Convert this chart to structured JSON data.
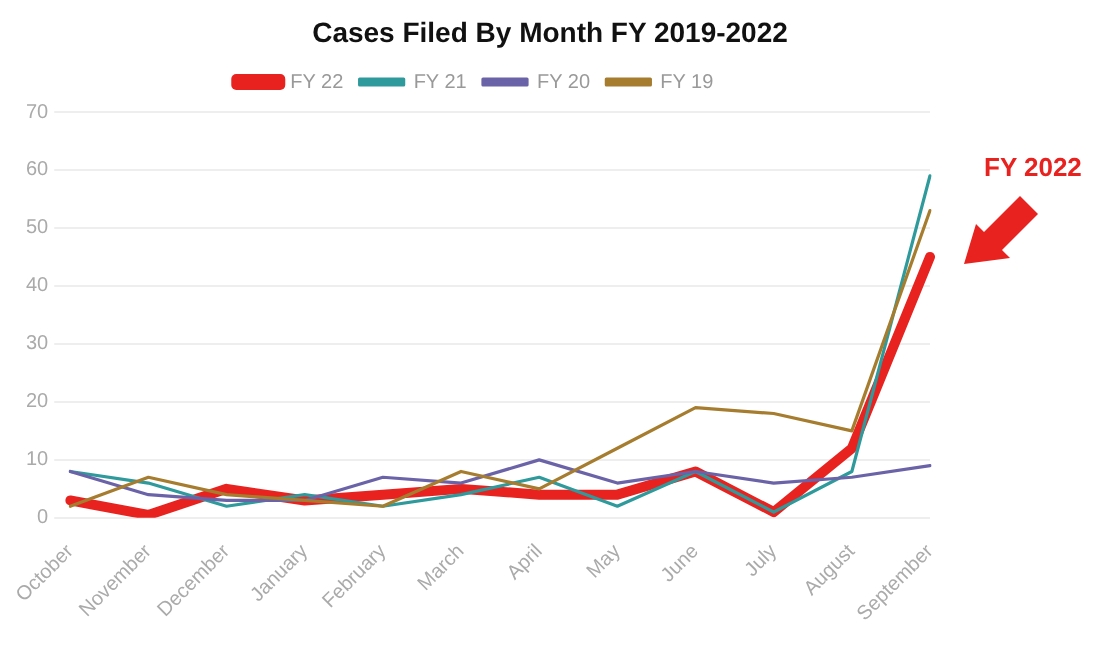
{
  "chart_data": {
    "type": "line",
    "title": "Cases Filed By Month FY 2019-2022",
    "categories": [
      "October",
      "November",
      "December",
      "January",
      "February",
      "March",
      "April",
      "May",
      "June",
      "July",
      "August",
      "September"
    ],
    "series": [
      {
        "name": "FY 22",
        "color": "#e8221f",
        "values": [
          3,
          0.5,
          5,
          3,
          4,
          5,
          4,
          4,
          8,
          1,
          12,
          45
        ]
      },
      {
        "name": "FY 21",
        "color": "#2e9a9c",
        "values": [
          8,
          6,
          2,
          4,
          2,
          4,
          7,
          2,
          8,
          1,
          8,
          59
        ]
      },
      {
        "name": "FY 20",
        "color": "#6b63a8",
        "values": [
          8,
          4,
          3,
          3,
          7,
          6,
          10,
          6,
          8,
          6,
          7,
          9
        ]
      },
      {
        "name": "FY 19",
        "color": "#a67c2e",
        "values": [
          2,
          7,
          4,
          3,
          2,
          8,
          5,
          12,
          19,
          18,
          15,
          53
        ]
      }
    ],
    "ylim": [
      0,
      70
    ],
    "yticks": [
      0,
      10,
      20,
      30,
      40,
      50,
      60,
      70
    ],
    "grid": "y",
    "legend": "top",
    "marker": "none",
    "line_style": "solid",
    "annotations": [
      "FY 2022"
    ]
  }
}
